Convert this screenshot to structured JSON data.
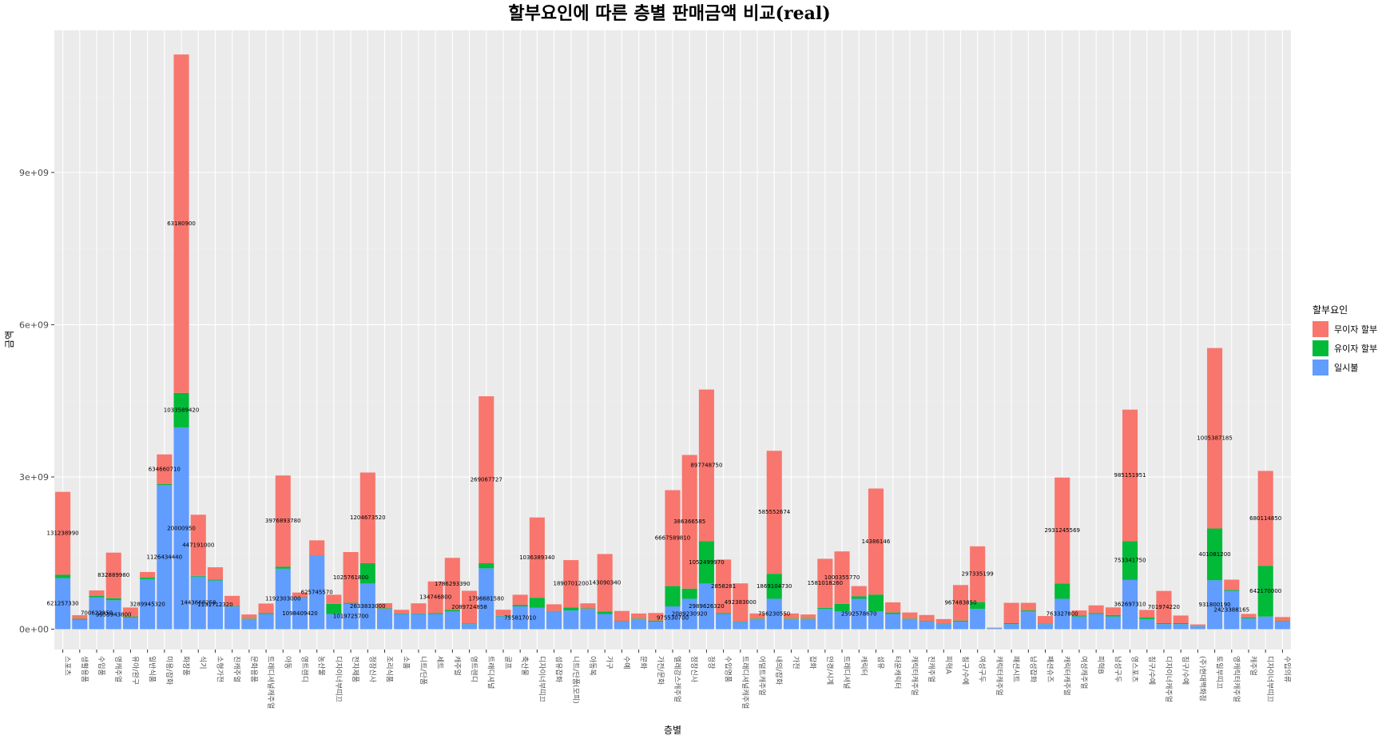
{
  "colors": {
    "panel_bg": "#ebebeb",
    "grid_major": "#ffffff",
    "grid_minor": "#f2f2f2",
    "tick_text": "#4d4d4d",
    "series": [
      "#f8766d",
      "#00ba38",
      "#619cff"
    ]
  },
  "chart_data": {
    "type": "bar",
    "stacked": true,
    "title": "할부요인에 따른 층별 판매금액 비교(real)",
    "xlabel": "층별",
    "ylabel": "금액",
    "ylim": [
      -400000000,
      11800000000
    ],
    "yticks": [
      0,
      3000000000,
      6000000000,
      9000000000
    ],
    "ytick_labels": [
      "0e+00",
      "3e+09",
      "6e+09",
      "9e+09"
    ],
    "grid": true,
    "legend": {
      "title": "할부요인",
      "position": "right"
    },
    "categories": [
      "스포츠",
      "생활용품",
      "수입품",
      "영캐주얼",
      "유아/완구",
      "일반식품",
      "미용/잡화",
      "화장품",
      "식기",
      "소형가전",
      "진캐주얼",
      "문화용품",
      "트래디셔널캐주얼",
      "아동",
      "영트렌디",
      "농산물",
      "디자이너부띠끄",
      "전자제품",
      "정장신사",
      "조리식품",
      "소품",
      "니트/단품",
      "세트",
      "캐주얼",
      "영트렌디",
      "트래디셔널",
      "골프",
      "축산물",
      "디자이너부띠끄",
      "섬유잡화",
      "니트/단품(모피)",
      "아동복",
      "가구",
      "수예",
      "문화",
      "가전/문화",
      "엘레강스캐주얼",
      "정장신사",
      "정장",
      "수입명품",
      "트래디셔널캐주얼",
      "어덜트캐주얼",
      "내의/잡화",
      "가전",
      "잡화",
      "안경/시계",
      "트래디셔널",
      "캐릭터",
      "섬유",
      "타운캐릭터",
      "캐릭터캐주얼",
      "진캐주얼",
      "피혁A",
      "침구/수예",
      "여성구두",
      "캐릭터캐주얼",
      "패션시트",
      "남성잡화",
      "패션슈즈",
      "캐릭터캐주얼",
      "여성캐주얼",
      "피혁B",
      "남성구두",
      "영스포츠",
      "침구/수예",
      "디자이너캐주얼",
      "침구/수예",
      "(주)현대백화점",
      "토일부띠끄",
      "영캐릭터캐주얼",
      "캐주얼",
      "디자이너부띠끄",
      "수입의류"
    ],
    "series": [
      {
        "name": "무이자 할부",
        "values": [
          1631600000,
          71000000,
          104000000,
          897748750,
          177000000,
          112000000,
          585552674,
          6667589810,
          1204673520,
          241000000,
          200000000,
          80000000,
          186000000,
          1796681580,
          90000000,
          297335199,
          180000000,
          1000355770,
          1786293390,
          100000000,
          73000000,
          200000000,
          621257330,
          1025761800,
          642170000,
          3289945320,
          120000000,
          200000000,
          1581018260,
          131000000,
          931800190,
          100000000,
          1131712320,
          200000000,
          100000000,
          150000000,
          1890701200,
          2633833000,
          2989626320,
          1052499970,
          753341750,
          100000000,
          2423388165,
          100000000,
          80000000,
          967483850,
          1033589420,
          200000000,
          2089724858,
          200000000,
          120000000,
          120000000,
          90000000,
          700622850,
          1098409420,
          10000000,
          400000000,
          150000000,
          150000000,
          2089230920,
          100000000,
          150000000,
          150000000,
          2592578670,
          150000000,
          634660710,
          150000000,
          30000000,
          3555943800,
          201200000,
          70000000,
          1869104730,
          80000000
        ]
      },
      {
        "name": "유이자 할부",
        "values": [
          70000000,
          15000000,
          30000000,
          40000000,
          20000000,
          30000000,
          20000000,
          680114850,
          15000000,
          20000000,
          10000000,
          10000000,
          20000000,
          40000000,
          10000000,
          10000000,
          200000000,
          20000000,
          401081200,
          10000000,
          10000000,
          10000000,
          20000000,
          30000000,
          15000000,
          100000000,
          10000000,
          30000000,
          200000000,
          10000000,
          60000000,
          10000000,
          50000000,
          10000000,
          10000000,
          20000000,
          400000000,
          200000000,
          832889980,
          20000000,
          10000000,
          10000000,
          492383000,
          10000000,
          10000000,
          20000000,
          150000000,
          50000000,
          332640400,
          30000000,
          10000000,
          10000000,
          10000000,
          20000000,
          134746800,
          2000000,
          20000000,
          20000000,
          10000000,
          300000000,
          20000000,
          20000000,
          30000000,
          763327800,
          30000000,
          20000000,
          20000000,
          5000000,
          1019725700,
          20000000,
          20000000,
          1000000000,
          10000000
        ]
      },
      {
        "name": "일시불",
        "values": [
          1005387185,
          190000000,
          630000000,
          571222520,
          231227890,
          986151951,
          2838814600,
          3976893780,
          1036389340,
          960000000,
          447191000,
          200000000,
          300000000,
          1192303000,
          622806640,
          1443668258,
          300000000,
          500000000,
          900000000,
          402600000,
          300000000,
          300000000,
          300000000,
          350000000,
          100000000,
          1200000000,
          254233000,
          450000000,
          421000000,
          350000000,
          370000000,
          400000000,
          300000000,
          150000000,
          200000000,
          150000000,
          450000000,
          600000000,
          900000000,
          300000000,
          140000000,
          200000000,
          600000000,
          200000000,
          200000000,
          400000000,
          350000000,
          600000000,
          350000000,
          300000000,
          200000000,
          150000000,
          100000000,
          150000000,
          400000000,
          20000000,
          100000000,
          350000000,
          100000000,
          600000000,
          250000000,
          300000000,
          250000000,
          971028170,
          200000000,
          100000000,
          100000000,
          60000000,
          964736150,
          755817010,
          212000000,
          250000000,
          150000000
        ]
      }
    ],
    "data_labels": [
      "63180900",
      "20000950",
      "1005387185",
      "269067727",
      "897748750",
      "1126434440",
      "386366585",
      "985151951",
      "585552674",
      "14386146",
      "2931245569",
      "6667589810",
      "680114850",
      "3976893780",
      "1204673520",
      "131238990",
      "1036389340",
      "625745570",
      "447191000",
      "1796681580",
      "1192303000",
      "143090340",
      "297335199",
      "2858281",
      "1443668258",
      "1000355770",
      "1786293390",
      "401081200",
      "621257330",
      "1025761800",
      "642170000",
      "3289945320",
      "362697310",
      "1581018260",
      "931800190",
      "1131712320",
      "1890701200",
      "2633833000",
      "2989626320",
      "832889980",
      "1052499970",
      "753341750",
      "2423388165",
      "492383000",
      "967483850",
      "1033589420",
      "2089724858",
      "701974220",
      "700622850",
      "1098409420",
      "134746800",
      "2089230920",
      "756230550",
      "2592578670",
      "763327800",
      "634660710",
      "3555943800",
      "1019725700",
      "1869104730",
      "755817010",
      "975530700"
    ]
  }
}
